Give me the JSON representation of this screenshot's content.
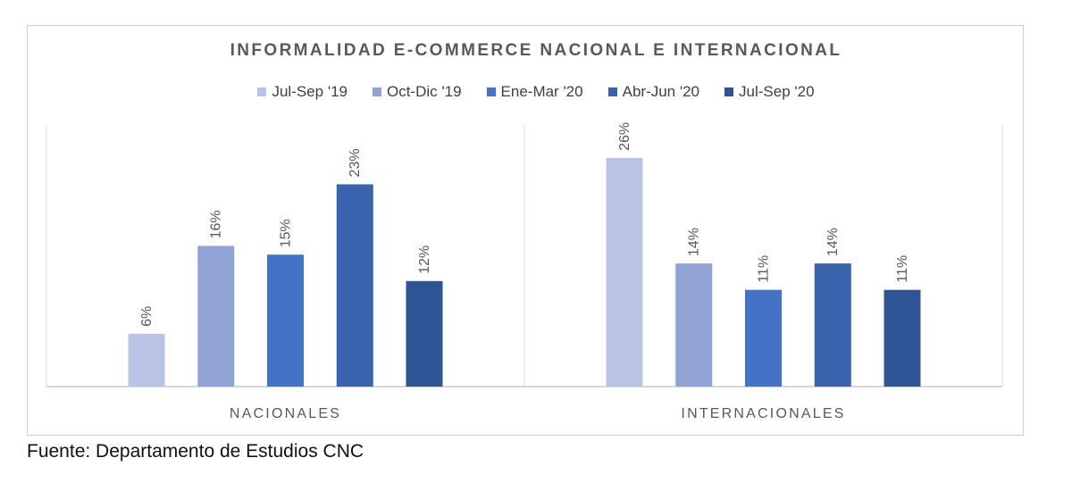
{
  "source_note": "Fuente: Departamento de Estudios CNC",
  "colors": [
    "#b9c4e4",
    "#8fa4d4",
    "#4472c4",
    "#3a63ae",
    "#2f5496"
  ],
  "chart_data": {
    "type": "bar",
    "title": "INFORMALIDAD E-COMMERCE NACIONAL E INTERNACIONAL",
    "categories": [
      "NACIONALES",
      "INTERNACIONALES"
    ],
    "series": [
      {
        "name": "Jul-Sep '19",
        "values": [
          6,
          26
        ],
        "labels": [
          "6%",
          "26%"
        ]
      },
      {
        "name": "Oct-Dic '19",
        "values": [
          16,
          14
        ],
        "labels": [
          "16%",
          "14%"
        ]
      },
      {
        "name": "Ene-Mar '20",
        "values": [
          15,
          11
        ],
        "labels": [
          "15%",
          "11%"
        ]
      },
      {
        "name": "Abr-Jun '20",
        "values": [
          23,
          14
        ],
        "labels": [
          "23%",
          "14%"
        ]
      },
      {
        "name": "Jul-Sep '20",
        "values": [
          12,
          11
        ],
        "labels": [
          "12%",
          "11%"
        ]
      }
    ],
    "legend_position": "top",
    "grid": false,
    "ylim": [
      0,
      30
    ]
  }
}
